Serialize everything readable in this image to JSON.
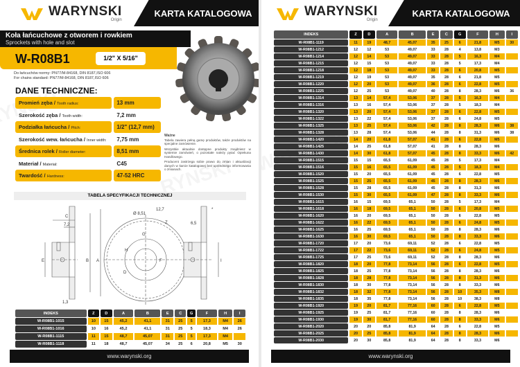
{
  "brand": {
    "name": "WARYNSKI",
    "sub": "Origin",
    "accent": "#f6b700"
  },
  "header": {
    "title": "KARTA KATALOGOWA"
  },
  "product": {
    "title_pl": "Koła łańcuchowe z otworem i rowkiem",
    "title_en": "Sprockets with hole and slot",
    "code": "W-R08B1",
    "size": "1/2\" X 5/16\"",
    "norm_pl": "Do łańcuchów normy: PN77/M-84168, DIN 8187,ISO 606",
    "norm_en": "For chains standard: PN77/M-84168, DIN 8187,ISO 606"
  },
  "tech": {
    "heading": "DANE TECHNICZNE:",
    "rows": [
      {
        "pl": "Promień zęba",
        "en": "Tooth radius:",
        "value": "13 mm"
      },
      {
        "pl": "Szerokość zęba",
        "en": "Tooth width:",
        "value": "7,2 mm"
      },
      {
        "pl": "Podziałka łańcucha",
        "en": "Pitch:",
        "value": "1/2\" (12,7 mm)"
      },
      {
        "pl": "Szerokość wew. łańcucha",
        "en": "Inner width:",
        "value": "7,75 mm"
      },
      {
        "pl": "Średnica rolek",
        "en": "Roller diameter:",
        "value": "8,51 mm"
      },
      {
        "pl": "Materiał",
        "en": "Material:",
        "value": "C45"
      },
      {
        "pl": "Twardość",
        "en": "Hardness:",
        "value": "47-52 HRC"
      }
    ]
  },
  "note": {
    "title": "Ważne",
    "p1": "Tabela zawiera pełną gamę produktów, także produktów na specjalne zamówienie.",
    "p2": "Wszystkie aktualnie dostępne produkty znajdziesz w systemie zamówień, o pozostałe należy pytać Opiekuna Handlowego.",
    "p3": "Producent zastrzega sobie prawo do zmian i aktualizacji danych w karcie katalogowej bez uprzedniego informowania o zmianach."
  },
  "spec_band": "TABELA SPECYFIKACJI TECHNICZNEJ",
  "drawing": {
    "C": "C",
    "w72": "7,2",
    "E": "E",
    "B": "B",
    "A": "A",
    "d13": "1,3",
    "d851": "Ø 8,51",
    "p127": "12,7",
    "Z": "Z",
    "G": "G",
    "H": "H",
    "F": "F",
    "D": "D",
    "d65": "6,5",
    "I": "I",
    "star": "*"
  },
  "columns": [
    "INDEKS",
    "Z",
    "D",
    "A",
    "B",
    "E",
    "C",
    "G",
    "F",
    "H",
    "I"
  ],
  "table_left": [
    [
      "W-R08B1-1015",
      "10",
      "15",
      "45,2",
      "41,1",
      "31",
      "25",
      "5",
      "17,3",
      "M4",
      "26"
    ],
    [
      "W-R08B1-1016",
      "10",
      "16",
      "45,2",
      "41,1",
      "31",
      "25",
      "5",
      "18,3",
      "M4",
      "26"
    ],
    [
      "W-R08B1-1115",
      "11",
      "15",
      "48,7",
      "45,07",
      "31",
      "25",
      "5",
      "17,3",
      "M4",
      ""
    ],
    [
      "W-R08B1-1118",
      "11",
      "18",
      "48,7",
      "45,07",
      "34",
      "25",
      "6",
      "20,8",
      "M5",
      "30"
    ]
  ],
  "table_right": [
    [
      "W-R08B1-1119",
      "11",
      "19",
      "48,7",
      "45,07",
      "35",
      "25",
      "6",
      "21,8",
      "M5",
      "30"
    ],
    [
      "W-R08B1-1212",
      "12",
      "12",
      "53",
      "49,07",
      "33",
      "28",
      "4",
      "13,8",
      "M3",
      ""
    ],
    [
      "W-R08B1-1214",
      "12",
      "14",
      "53",
      "49,07",
      "33",
      "28",
      "5",
      "16,3",
      "M4",
      ""
    ],
    [
      "W-R08B1-1215",
      "12",
      "15",
      "53",
      "49,07",
      "33",
      "28",
      "5",
      "17,3",
      "M4",
      ""
    ],
    [
      "W-R08B1-1218",
      "12",
      "18",
      "53",
      "49,07",
      "33",
      "28",
      "6",
      "20,8",
      "M5",
      ""
    ],
    [
      "W-R08B1-1219",
      "12",
      "19",
      "53",
      "49,07",
      "35",
      "28",
      "6",
      "21,8",
      "M5",
      ""
    ],
    [
      "W-R08B1-1220",
      "12",
      "20",
      "53",
      "49,07",
      "36",
      "28",
      "6",
      "22,8",
      "M5",
      ""
    ],
    [
      "W-R08B1-1225",
      "12",
      "25",
      "53",
      "49,07",
      "40",
      "28",
      "8",
      "28,3",
      "M6",
      "36"
    ],
    [
      "W-R08B1-1314",
      "13",
      "14",
      "57,4",
      "53,06",
      "37",
      "28",
      "5",
      "16,3",
      "M4",
      ""
    ],
    [
      "W-R08B1-1316",
      "13",
      "16",
      "57,4",
      "53,06",
      "37",
      "28",
      "5",
      "18,3",
      "M4",
      ""
    ],
    [
      "W-R08B1-1320",
      "13",
      "20",
      "57,4",
      "53,06",
      "37",
      "28",
      "6",
      "22,8",
      "M5",
      ""
    ],
    [
      "W-R08B1-1322",
      "13",
      "22",
      "57,4",
      "53,06",
      "37",
      "28",
      "6",
      "24,8",
      "M5",
      ""
    ],
    [
      "W-R08B1-1325",
      "13",
      "25",
      "57,4",
      "53,06",
      "42",
      "28",
      "8",
      "28,3",
      "M6",
      "38"
    ],
    [
      "W-R08B1-1328",
      "13",
      "28",
      "57,4",
      "53,06",
      "44",
      "28",
      "8",
      "31,3",
      "M6",
      "38"
    ],
    [
      "W-R08B1-1420",
      "14",
      "20",
      "61,8",
      "57,07",
      "41",
      "28",
      "6",
      "22,8",
      "M5",
      ""
    ],
    [
      "W-R08B1-1425",
      "14",
      "25",
      "61,8",
      "57,07",
      "41",
      "28",
      "8",
      "28,3",
      "M6",
      ""
    ],
    [
      "W-R08B1-1430",
      "14",
      "30",
      "61,8",
      "57,07",
      "45",
      "28",
      "8",
      "33,3",
      "M6",
      "42"
    ],
    [
      "W-R08B1-1515",
      "15",
      "15",
      "65,5",
      "61,09",
      "45",
      "28",
      "5",
      "17,3",
      "M4",
      ""
    ],
    [
      "W-R08B1-1516",
      "15",
      "16",
      "65,5",
      "61,09",
      "45",
      "28",
      "5",
      "18,3",
      "M4",
      ""
    ],
    [
      "W-R08B1-1520",
      "15",
      "20",
      "65,5",
      "61,09",
      "45",
      "28",
      "6",
      "22,8",
      "M5",
      ""
    ],
    [
      "W-R08B1-1525",
      "15",
      "25",
      "65,5",
      "61,09",
      "45",
      "28",
      "8",
      "28,3",
      "M6",
      ""
    ],
    [
      "W-R08B1-1528",
      "15",
      "28",
      "65,5",
      "61,09",
      "45",
      "28",
      "8",
      "31,3",
      "M6",
      ""
    ],
    [
      "W-R08B1-1530",
      "15",
      "30",
      "65,5",
      "61,09",
      "47",
      "28",
      "8",
      "33,3",
      "M6",
      ""
    ],
    [
      "W-R08B1-1615",
      "16",
      "15",
      "69,5",
      "65,1",
      "50",
      "28",
      "5",
      "17,3",
      "M4",
      ""
    ],
    [
      "W-R08B1-1618",
      "16",
      "18",
      "69,5",
      "65,1",
      "50",
      "28",
      "6",
      "20,8",
      "M5",
      ""
    ],
    [
      "W-R08B1-1620",
      "16",
      "20",
      "69,5",
      "65,1",
      "50",
      "28",
      "6",
      "22,8",
      "M5",
      ""
    ],
    [
      "W-R08B1-1622",
      "16",
      "22",
      "69,5",
      "65,1",
      "50",
      "28",
      "6",
      "24,8",
      "M5",
      ""
    ],
    [
      "W-R08B1-1625",
      "16",
      "25",
      "69,5",
      "65,1",
      "50",
      "28",
      "8",
      "28,3",
      "M6",
      ""
    ],
    [
      "W-R08B1-1630",
      "16",
      "30",
      "69,5",
      "65,1",
      "50",
      "28",
      "8",
      "33,3",
      "M6",
      ""
    ],
    [
      "W-R08B1-1720",
      "17",
      "20",
      "73,6",
      "69,11",
      "52",
      "28",
      "6",
      "22,8",
      "M5",
      ""
    ],
    [
      "W-R08B1-1722",
      "17",
      "22",
      "73,6",
      "69,11",
      "52",
      "28",
      "6",
      "24,8",
      "M5",
      ""
    ],
    [
      "W-R08B1-1725",
      "17",
      "25",
      "73,6",
      "69,11",
      "52",
      "28",
      "8",
      "28,3",
      "M6",
      ""
    ],
    [
      "W-R08B1-1820",
      "18",
      "20",
      "77,8",
      "73,14",
      "56",
      "28",
      "6",
      "22,8",
      "M5",
      ""
    ],
    [
      "W-R08B1-1825",
      "18",
      "25",
      "77,8",
      "73,14",
      "56",
      "28",
      "8",
      "28,3",
      "M6",
      ""
    ],
    [
      "W-R08B1-1828",
      "18",
      "28",
      "77,8",
      "73,14",
      "56",
      "28",
      "8",
      "31,3",
      "M6",
      ""
    ],
    [
      "W-R08B1-1830",
      "18",
      "30",
      "77,8",
      "73,14",
      "56",
      "28",
      "8",
      "33,3",
      "M6",
      ""
    ],
    [
      "W-R08B1-1832",
      "18",
      "32",
      "77,8",
      "73,14",
      "56",
      "28",
      "10",
      "35,3",
      "M8",
      ""
    ],
    [
      "W-R08B1-1835",
      "18",
      "35",
      "77,8",
      "73,14",
      "56",
      "28",
      "10",
      "38,3",
      "M8",
      ""
    ],
    [
      "W-R08B1-1920",
      "19",
      "20",
      "81,7",
      "77,16",
      "60",
      "28",
      "6",
      "22,8",
      "M5",
      ""
    ],
    [
      "W-R08B1-1925",
      "19",
      "25",
      "81,7",
      "77,16",
      "60",
      "28",
      "8",
      "28,3",
      "M6",
      ""
    ],
    [
      "W-R08B1-1930",
      "19",
      "30",
      "81,7",
      "77,16",
      "60",
      "28",
      "8",
      "33,3",
      "M6",
      ""
    ],
    [
      "W-R08B1-2020",
      "20",
      "20",
      "85,8",
      "81,9",
      "64",
      "28",
      "6",
      "22,8",
      "M5",
      ""
    ],
    [
      "W-R08B1-2025",
      "20",
      "25",
      "85,8",
      "81,9",
      "64",
      "28",
      "8",
      "28,3",
      "M6",
      ""
    ],
    [
      "W-R08B1-2030",
      "20",
      "30",
      "85,8",
      "81,9",
      "64",
      "28",
      "8",
      "33,3",
      "M6",
      ""
    ]
  ],
  "footer": {
    "url": "www.warynski.org"
  }
}
